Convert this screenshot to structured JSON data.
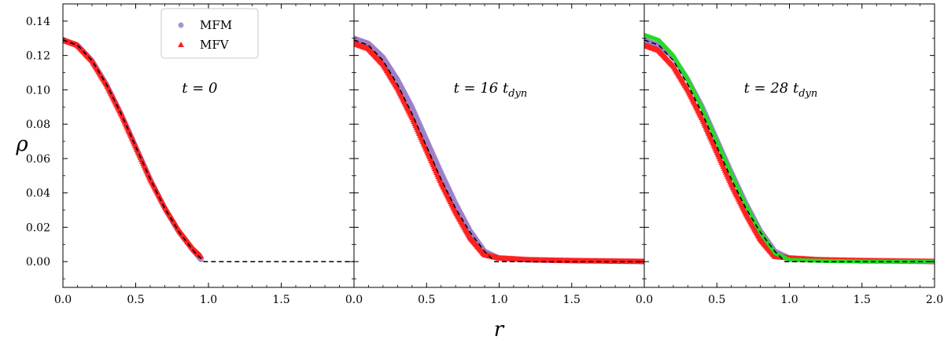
{
  "chart_data": {
    "type": "scatter",
    "xlabel": "r",
    "ylabel": "ρ",
    "xlim": [
      0,
      2
    ],
    "ylim": [
      -0.015,
      0.15
    ],
    "yticks": [
      "0.00",
      "0.02",
      "0.04",
      "0.06",
      "0.08",
      "0.10",
      "0.12",
      "0.14"
    ],
    "yticks_values": [
      0,
      0.02,
      0.04,
      0.06,
      0.08,
      0.1,
      0.12,
      0.14
    ],
    "xticks_panels": [
      [
        "0.0",
        "0.5",
        "1.0",
        "1.5"
      ],
      [
        "0.0",
        "0.5",
        "1.0",
        "1.5"
      ],
      [
        "0.0",
        "0.5",
        "1.0",
        "1.5",
        "2.0"
      ]
    ],
    "xticks_values_panels": [
      [
        0,
        0.5,
        1.0,
        1.5
      ],
      [
        0,
        0.5,
        1.0,
        1.5
      ],
      [
        0,
        0.5,
        1.0,
        1.5,
        2.0
      ]
    ],
    "legend": {
      "placement": "upper-center-left",
      "entries": [
        {
          "label": "MFM",
          "color": "#9b7fc9",
          "marker": "circle"
        },
        {
          "label": "MFV",
          "color": "#ff2020",
          "marker": "triangle"
        }
      ]
    },
    "colors": {
      "mfm": "#9b7fc9",
      "mfv": "#ff2020",
      "reference": "#000000",
      "third": "#22dd22"
    },
    "panels": [
      {
        "annotation": {
          "lhs": "t = 0",
          "var": "",
          "sub": ""
        },
        "reference": {
          "x": [
            0,
            0.1,
            0.2,
            0.3,
            0.4,
            0.5,
            0.6,
            0.7,
            0.8,
            0.9,
            0.97,
            1.0,
            2.0
          ],
          "y": [
            0.129,
            0.126,
            0.117,
            0.103,
            0.086,
            0.067,
            0.048,
            0.031,
            0.017,
            0.006,
            0.0,
            0.0,
            0.0
          ]
        },
        "series": [
          {
            "name": "MFM",
            "x": [
              0,
              0.1,
              0.2,
              0.3,
              0.4,
              0.5,
              0.6,
              0.7,
              0.8,
              0.9,
              0.95
            ],
            "y": [
              0.129,
              0.126,
              0.117,
              0.103,
              0.086,
              0.067,
              0.048,
              0.031,
              0.017,
              0.006,
              0.001
            ]
          },
          {
            "name": "MFV",
            "x": [
              0,
              0.1,
              0.2,
              0.3,
              0.4,
              0.5,
              0.6,
              0.7,
              0.8,
              0.9,
              0.95
            ],
            "y": [
              0.129,
              0.126,
              0.117,
              0.103,
              0.086,
              0.067,
              0.048,
              0.032,
              0.018,
              0.007,
              0.003
            ]
          }
        ]
      },
      {
        "annotation": {
          "lhs": "t = 16 ",
          "var": "t",
          "sub": "dyn"
        },
        "reference": {
          "x": [
            0,
            0.1,
            0.2,
            0.3,
            0.4,
            0.5,
            0.6,
            0.7,
            0.8,
            0.9,
            0.97,
            1.0,
            2.0
          ],
          "y": [
            0.129,
            0.126,
            0.117,
            0.103,
            0.086,
            0.067,
            0.048,
            0.031,
            0.017,
            0.006,
            0.0,
            0.0,
            0.0
          ]
        },
        "series": [
          {
            "name": "MFM",
            "x": [
              0,
              0.1,
              0.2,
              0.3,
              0.4,
              0.5,
              0.6,
              0.7,
              0.8,
              0.9,
              1.0,
              1.2,
              1.5,
              2.0
            ],
            "y": [
              0.13,
              0.127,
              0.119,
              0.106,
              0.09,
              0.071,
              0.052,
              0.034,
              0.018,
              0.006,
              0.002,
              0.001,
              0.0005,
              0.0
            ]
          },
          {
            "name": "MFV",
            "x": [
              0,
              0.1,
              0.2,
              0.3,
              0.4,
              0.5,
              0.6,
              0.7,
              0.8,
              0.9,
              1.0,
              1.2,
              1.5,
              2.0
            ],
            "y": [
              0.127,
              0.124,
              0.115,
              0.101,
              0.084,
              0.065,
              0.046,
              0.029,
              0.014,
              0.004,
              0.002,
              0.001,
              0.0005,
              0.0
            ]
          }
        ]
      },
      {
        "annotation": {
          "lhs": "t = 28 ",
          "var": "t",
          "sub": "dyn"
        },
        "reference": {
          "x": [
            0,
            0.1,
            0.2,
            0.3,
            0.4,
            0.5,
            0.6,
            0.7,
            0.8,
            0.9,
            0.97,
            1.0,
            2.0
          ],
          "y": [
            0.129,
            0.126,
            0.117,
            0.103,
            0.086,
            0.067,
            0.048,
            0.031,
            0.017,
            0.006,
            0.0,
            0.0,
            0.0
          ]
        },
        "series": [
          {
            "name": "MFM",
            "x": [
              0,
              0.1,
              0.2,
              0.3,
              0.4,
              0.5,
              0.6,
              0.7,
              0.8,
              0.9,
              1.0,
              1.2,
              1.5,
              2.0
            ],
            "y": [
              0.129,
              0.126,
              0.119,
              0.106,
              0.09,
              0.071,
              0.052,
              0.034,
              0.018,
              0.006,
              0.002,
              0.001,
              0.0005,
              0.0
            ]
          },
          {
            "name": "MFV",
            "x": [
              0,
              0.1,
              0.2,
              0.3,
              0.4,
              0.5,
              0.6,
              0.7,
              0.8,
              0.9,
              1.0,
              1.2,
              1.5,
              2.0
            ],
            "y": [
              0.126,
              0.123,
              0.114,
              0.1,
              0.083,
              0.064,
              0.045,
              0.028,
              0.013,
              0.003,
              0.002,
              0.001,
              0.0005,
              0.0
            ]
          },
          {
            "name": "",
            "x": [
              0,
              0.1,
              0.2,
              0.3,
              0.4,
              0.5,
              0.6,
              0.7,
              0.8,
              0.9,
              1.0,
              1.2,
              1.5,
              2.0
            ],
            "y": [
              0.132,
              0.129,
              0.12,
              0.106,
              0.089,
              0.07,
              0.051,
              0.033,
              0.017,
              0.005,
              0.001,
              0.0005,
              0.0,
              0.0
            ]
          }
        ]
      }
    ]
  }
}
